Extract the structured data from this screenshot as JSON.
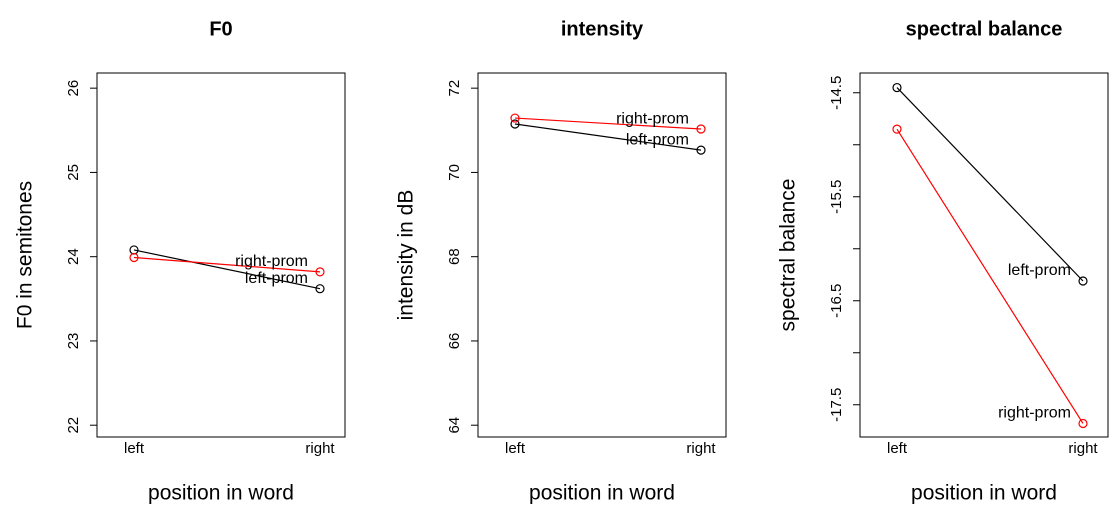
{
  "chart_data": [
    {
      "type": "line",
      "title": "F0",
      "x_label": "position in word",
      "y_label": "F0 in semitones",
      "categories": [
        "left",
        "right"
      ],
      "series": [
        {
          "name": "left-prom",
          "color": "#000000",
          "values": [
            24.08,
            23.62
          ]
        },
        {
          "name": "right-prom",
          "color": "#ff0000",
          "values": [
            23.99,
            23.82
          ]
        }
      ],
      "ylim": [
        21.86,
        26.18
      ],
      "yticks": [
        22,
        23,
        24,
        25,
        26
      ]
    },
    {
      "type": "line",
      "title": "intensity",
      "x_label": "position in word",
      "y_label": "intensity in dB",
      "categories": [
        "left",
        "right"
      ],
      "series": [
        {
          "name": "left-prom",
          "color": "#000000",
          "values": [
            71.15,
            70.53
          ]
        },
        {
          "name": "right-prom",
          "color": "#ff0000",
          "values": [
            71.29,
            71.03
          ]
        }
      ],
      "ylim": [
        63.72,
        72.36
      ],
      "yticks": [
        64,
        66,
        68,
        70,
        72
      ]
    },
    {
      "type": "line",
      "title": "spectral balance",
      "x_label": "position in word",
      "y_label": "spectral balance",
      "categories": [
        "left",
        "right"
      ],
      "series": [
        {
          "name": "left-prom",
          "color": "#000000",
          "values": [
            -14.45,
            -16.31
          ]
        },
        {
          "name": "right-prom",
          "color": "#ff0000",
          "values": [
            -14.85,
            -17.68
          ]
        }
      ],
      "ylim": [
        -17.81,
        -14.31
      ],
      "yticks": [
        -14.5,
        -15.5,
        -16.5,
        -17.5
      ],
      "yticks_minor": [
        -15,
        -16,
        -17
      ]
    }
  ]
}
